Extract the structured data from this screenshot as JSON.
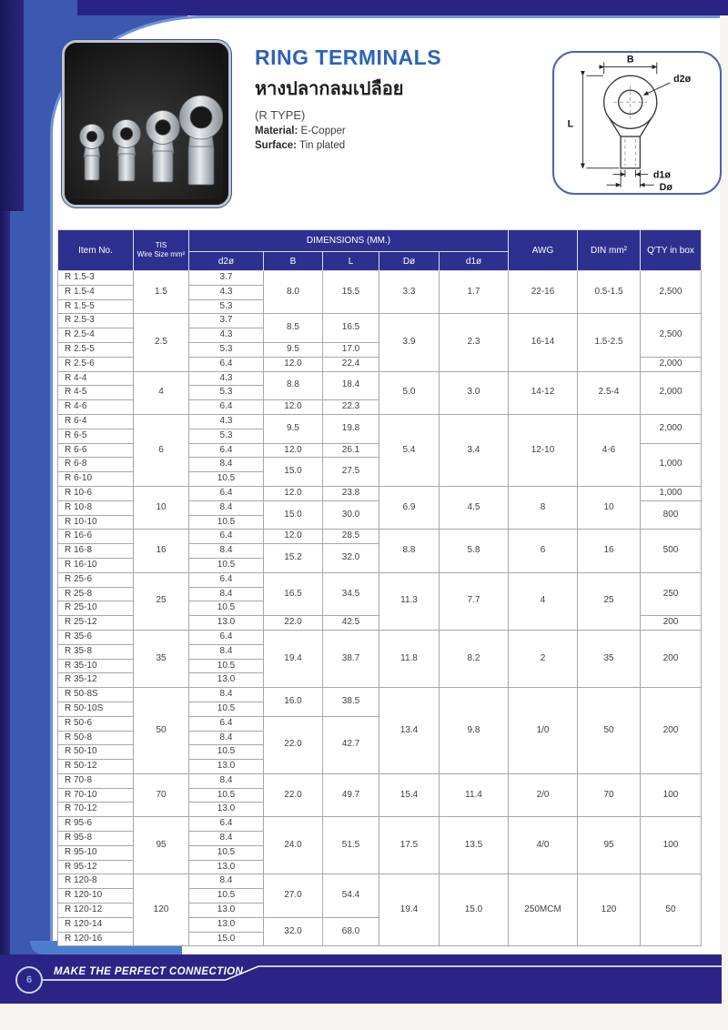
{
  "header": {
    "title": "RING TERMINALS",
    "subtitle_thai": "หางปลากลมเปลือย",
    "type_label": "(R TYPE)",
    "material_label": "Material:",
    "material_value": "E-Copper",
    "surface_label": "Surface:",
    "surface_value": "Tin plated"
  },
  "diagram": {
    "label_b": "B",
    "label_d2": "d2ø",
    "label_l": "L",
    "label_d1": "d1ø",
    "label_d": "Dø"
  },
  "table": {
    "columns": {
      "item": "Item No.",
      "tis_line1": "TIS",
      "tis_line2": "Wire Size mm²",
      "dimensions": "DIMENSIONS (MM.)",
      "dims": [
        "d2ø",
        "B",
        "L",
        "Dø",
        "d1ø"
      ],
      "awg": "AWG",
      "din": "DIN mm²",
      "qty": "Q'TY in box"
    },
    "groups": [
      {
        "wire": "1.5",
        "rows": [
          {
            "item": "R 1.5-3",
            "d2": "3.7"
          },
          {
            "item": "R 1.5-4",
            "d2": "4.3"
          },
          {
            "item": "R 1.5-5",
            "d2": "5.3"
          }
        ],
        "bl": [
          {
            "b": "8.0",
            "l": "15.5",
            "span": 3
          }
        ],
        "dd": "3.3",
        "d1": "1.7",
        "awg": "22-16",
        "din": "0.5-1.5",
        "qty": [
          {
            "v": "2,500",
            "span": 3
          }
        ]
      },
      {
        "wire": "2.5",
        "rows": [
          {
            "item": "R 2.5-3",
            "d2": "3.7"
          },
          {
            "item": "R 2.5-4",
            "d2": "4.3"
          },
          {
            "item": "R 2.5-5",
            "d2": "5.3"
          },
          {
            "item": "R 2.5-6",
            "d2": "6.4"
          }
        ],
        "bl": [
          {
            "b": "8.5",
            "l": "16.5",
            "span": 2
          },
          {
            "b": "9.5",
            "l": "17.0",
            "span": 1
          },
          {
            "b": "12.0",
            "l": "22.4",
            "span": 1
          }
        ],
        "dd": "3.9",
        "d1": "2.3",
        "awg": "16-14",
        "din": "1.5-2.5",
        "qty": [
          {
            "v": "2,500",
            "span": 3
          },
          {
            "v": "2,000",
            "span": 1
          }
        ]
      },
      {
        "wire": "4",
        "rows": [
          {
            "item": "R 4-4",
            "d2": "4.3"
          },
          {
            "item": "R 4-5",
            "d2": "5.3"
          },
          {
            "item": "R 4-6",
            "d2": "6.4"
          }
        ],
        "bl": [
          {
            "b": "8.8",
            "l": "18.4",
            "span": 2
          },
          {
            "b": "12.0",
            "l": "22.3",
            "span": 1
          }
        ],
        "dd": "5.0",
        "d1": "3.0",
        "awg": "14-12",
        "din": "2.5-4",
        "qty": [
          {
            "v": "2,000",
            "span": 3
          }
        ]
      },
      {
        "wire": "6",
        "rows": [
          {
            "item": "R 6-4",
            "d2": "4.3"
          },
          {
            "item": "R 6-5",
            "d2": "5.3"
          },
          {
            "item": "R 6-6",
            "d2": "6.4"
          },
          {
            "item": "R 6-8",
            "d2": "8.4"
          },
          {
            "item": "R 6-10",
            "d2": "10.5"
          }
        ],
        "bl": [
          {
            "b": "9.5",
            "l": "19.8",
            "span": 2
          },
          {
            "b": "12.0",
            "l": "26.1",
            "span": 1
          },
          {
            "b": "15.0",
            "l": "27.5",
            "span": 2
          }
        ],
        "dd": "5.4",
        "d1": "3.4",
        "awg": "12-10",
        "din": "4-6",
        "qty": [
          {
            "v": "2,000",
            "span": 2
          },
          {
            "v": "1,000",
            "span": 3
          }
        ]
      },
      {
        "wire": "10",
        "rows": [
          {
            "item": "R 10-6",
            "d2": "6.4"
          },
          {
            "item": "R 10-8",
            "d2": "8.4"
          },
          {
            "item": "R 10-10",
            "d2": "10.5"
          }
        ],
        "bl": [
          {
            "b": "12.0",
            "l": "23.8",
            "span": 1
          },
          {
            "b": "15.0",
            "l": "30.0",
            "span": 2
          }
        ],
        "dd": "6.9",
        "d1": "4.5",
        "awg": "8",
        "din": "10",
        "qty": [
          {
            "v": "1,000",
            "span": 1
          },
          {
            "v": "800",
            "span": 2
          }
        ]
      },
      {
        "wire": "16",
        "rows": [
          {
            "item": "R 16-6",
            "d2": "6.4"
          },
          {
            "item": "R 16-8",
            "d2": "8.4"
          },
          {
            "item": "R 16-10",
            "d2": "10.5"
          }
        ],
        "bl": [
          {
            "b": "12.0",
            "l": "28.5",
            "span": 1
          },
          {
            "b": "15.2",
            "l": "32.0",
            "span": 2
          }
        ],
        "dd": "8.8",
        "d1": "5.8",
        "awg": "6",
        "din": "16",
        "qty": [
          {
            "v": "500",
            "span": 3
          }
        ]
      },
      {
        "wire": "25",
        "rows": [
          {
            "item": "R 25-6",
            "d2": "6.4"
          },
          {
            "item": "R 25-8",
            "d2": "8.4"
          },
          {
            "item": "R 25-10",
            "d2": "10.5"
          },
          {
            "item": "R 25-12",
            "d2": "13.0"
          }
        ],
        "bl": [
          {
            "b": "16.5",
            "l": "34.5",
            "span": 3
          },
          {
            "b": "22.0",
            "l": "42.5",
            "span": 1
          }
        ],
        "dd": "11.3",
        "d1": "7.7",
        "awg": "4",
        "din": "25",
        "qty": [
          {
            "v": "250",
            "span": 3
          },
          {
            "v": "200",
            "span": 1
          }
        ]
      },
      {
        "wire": "35",
        "rows": [
          {
            "item": "R 35-6",
            "d2": "6.4"
          },
          {
            "item": "R 35-8",
            "d2": "8.4"
          },
          {
            "item": "R 35-10",
            "d2": "10.5"
          },
          {
            "item": "R 35-12",
            "d2": "13.0"
          }
        ],
        "bl": [
          {
            "b": "19.4",
            "l": "38.7",
            "span": 4
          }
        ],
        "dd": "11.8",
        "d1": "8.2",
        "awg": "2",
        "din": "35",
        "qty": [
          {
            "v": "200",
            "span": 4
          }
        ]
      },
      {
        "wire": "50",
        "rows": [
          {
            "item": "R 50-8S",
            "d2": "8.4"
          },
          {
            "item": "R 50-10S",
            "d2": "10.5"
          },
          {
            "item": "R 50-6",
            "d2": "6.4"
          },
          {
            "item": "R 50-8",
            "d2": "8.4"
          },
          {
            "item": "R 50-10",
            "d2": "10.5"
          },
          {
            "item": "R 50-12",
            "d2": "13.0"
          }
        ],
        "bl": [
          {
            "b": "16.0",
            "l": "38.5",
            "span": 2
          },
          {
            "b": "22.0",
            "l": "42.7",
            "span": 4
          }
        ],
        "dd": "13.4",
        "d1": "9.8",
        "awg": "1/0",
        "din": "50",
        "qty": [
          {
            "v": "200",
            "span": 6
          }
        ]
      },
      {
        "wire": "70",
        "rows": [
          {
            "item": "R 70-8",
            "d2": "8.4"
          },
          {
            "item": "R 70-10",
            "d2": "10.5"
          },
          {
            "item": "R 70-12",
            "d2": "13.0"
          }
        ],
        "bl": [
          {
            "b": "22.0",
            "l": "49.7",
            "span": 3
          }
        ],
        "dd": "15.4",
        "d1": "11.4",
        "awg": "2/0",
        "din": "70",
        "qty": [
          {
            "v": "100",
            "span": 3
          }
        ]
      },
      {
        "wire": "95",
        "rows": [
          {
            "item": "R 95-6",
            "d2": "6.4"
          },
          {
            "item": "R 95-8",
            "d2": "8.4"
          },
          {
            "item": "R 95-10",
            "d2": "10.5"
          },
          {
            "item": "R 95-12",
            "d2": "13.0"
          }
        ],
        "bl": [
          {
            "b": "24.0",
            "l": "51.5",
            "span": 4
          }
        ],
        "dd": "17.5",
        "d1": "13.5",
        "awg": "4/0",
        "din": "95",
        "qty": [
          {
            "v": "100",
            "span": 4
          }
        ]
      },
      {
        "wire": "120",
        "rows": [
          {
            "item": "R 120-8",
            "d2": "8.4"
          },
          {
            "item": "R 120-10",
            "d2": "10.5"
          },
          {
            "item": "R 120-12",
            "d2": "13.0"
          },
          {
            "item": "R 120-14",
            "d2": "13.0"
          },
          {
            "item": "R 120-16",
            "d2": "15.0"
          }
        ],
        "bl": [
          {
            "b": "27.0",
            "l": "54.4",
            "span": 3
          },
          {
            "b": "32.0",
            "l": "68.0",
            "span": 2
          }
        ],
        "dd": "19.4",
        "d1": "15.0",
        "awg": "250MCM",
        "din": "120",
        "qty": [
          {
            "v": "50",
            "span": 5
          }
        ]
      }
    ]
  },
  "footer": {
    "page_number": "6",
    "slogan": "MAKE THE PERFECT CONNECTION"
  },
  "colors": {
    "top_bar_navy": "#2a2383",
    "table_header_navy": "#2e3090",
    "left_band_blue": "#3c58b0",
    "panel_edge_light_blue": "#6e93d8",
    "title_blue": "#2c63b8",
    "footer_navy": "#2b2486"
  }
}
